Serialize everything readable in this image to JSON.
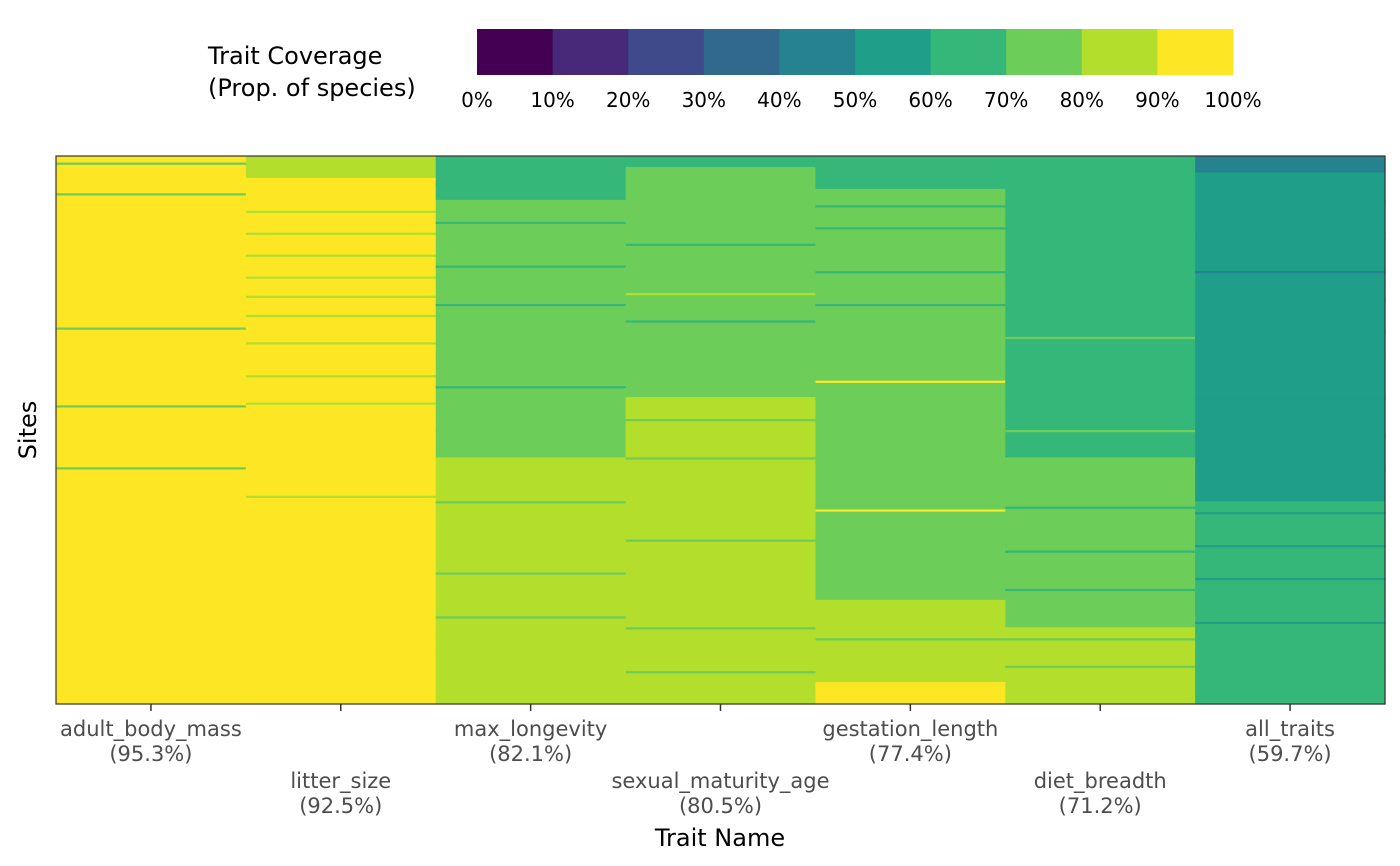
{
  "chart_data": {
    "type": "heatmap",
    "title": "",
    "xlabel": "Trait Name",
    "ylabel": "Sites",
    "legend": {
      "title_lines": [
        "Trait Coverage",
        "(Prop. of species)"
      ],
      "placement": "top",
      "tick_labels": [
        "0%",
        "10%",
        "20%",
        "30%",
        "40%",
        "50%",
        "60%",
        "70%",
        "80%",
        "90%",
        "100%"
      ],
      "bin_colors": [
        "#440154",
        "#482878",
        "#3E4A89",
        "#31688E",
        "#26828E",
        "#1F9E89",
        "#35B779",
        "#6DCD59",
        "#B4DE2C",
        "#FDE725"
      ]
    },
    "categories": [
      {
        "name": "adult_body_mass",
        "coverage_label": "(95.3%)",
        "coverage": 95.3
      },
      {
        "name": "litter_size",
        "coverage_label": "(92.5%)",
        "coverage": 92.5
      },
      {
        "name": "max_longevity",
        "coverage_label": "(82.1%)",
        "coverage": 82.1
      },
      {
        "name": "sexual_maturity_age",
        "coverage_label": "(80.5%)",
        "coverage": 80.5
      },
      {
        "name": "gestation_length",
        "coverage_label": "(77.4%)",
        "coverage": 77.4
      },
      {
        "name": "diet_breadth",
        "coverage_label": "(71.2%)",
        "coverage": 71.2
      },
      {
        "name": "all_traits",
        "coverage_label": "(59.7%)",
        "coverage": 59.7
      }
    ],
    "series": [
      {
        "bands": [
          [
            0,
            0.005,
            0.95
          ],
          [
            0.005,
            1,
            0.95
          ]
        ],
        "stripes": [
          [
            0.012,
            0.75
          ],
          [
            0.068,
            0.75
          ],
          [
            0.313,
            0.75
          ],
          [
            0.455,
            0.75
          ],
          [
            0.568,
            0.75
          ]
        ]
      },
      {
        "bands": [
          [
            0,
            0.01,
            0.85
          ],
          [
            0.01,
            0.04,
            0.85
          ],
          [
            0.04,
            0.35,
            0.92
          ],
          [
            0.35,
            1,
            0.95
          ]
        ],
        "stripes": [
          [
            0.1,
            0.85
          ],
          [
            0.14,
            0.85
          ],
          [
            0.18,
            0.85
          ],
          [
            0.22,
            0.85
          ],
          [
            0.255,
            0.85
          ],
          [
            0.29,
            0.85
          ],
          [
            0.34,
            0.85
          ],
          [
            0.4,
            0.85
          ],
          [
            0.45,
            0.85
          ],
          [
            0.62,
            0.85
          ]
        ]
      },
      {
        "bands": [
          [
            0,
            0.08,
            0.65
          ],
          [
            0.08,
            0.32,
            0.72
          ],
          [
            0.32,
            0.55,
            0.78
          ],
          [
            0.55,
            0.88,
            0.85
          ],
          [
            0.88,
            1,
            0.88
          ]
        ],
        "stripes": [
          [
            0.05,
            0.65
          ],
          [
            0.12,
            0.65
          ],
          [
            0.2,
            0.65
          ],
          [
            0.27,
            0.65
          ],
          [
            0.36,
            0.72
          ],
          [
            0.42,
            0.65
          ],
          [
            0.5,
            0.72
          ],
          [
            0.63,
            0.75
          ],
          [
            0.76,
            0.78
          ],
          [
            0.84,
            0.72
          ],
          [
            0.9,
            0.85
          ]
        ]
      },
      {
        "bands": [
          [
            0,
            0.02,
            0.65
          ],
          [
            0.02,
            0.04,
            0.72
          ],
          [
            0.04,
            0.22,
            0.75
          ],
          [
            0.22,
            0.44,
            0.72
          ],
          [
            0.44,
            0.62,
            0.82
          ],
          [
            0.62,
            0.98,
            0.85
          ],
          [
            0.98,
            1,
            0.88
          ]
        ],
        "stripes": [
          [
            0.16,
            0.65
          ],
          [
            0.25,
            0.85
          ],
          [
            0.3,
            0.65
          ],
          [
            0.39,
            0.72
          ],
          [
            0.48,
            0.75
          ],
          [
            0.55,
            0.72
          ],
          [
            0.7,
            0.72
          ],
          [
            0.86,
            0.72
          ],
          [
            0.94,
            0.75
          ]
        ]
      },
      {
        "bands": [
          [
            0,
            0.06,
            0.65
          ],
          [
            0.06,
            0.18,
            0.72
          ],
          [
            0.18,
            0.64,
            0.75
          ],
          [
            0.64,
            0.81,
            0.78
          ],
          [
            0.81,
            0.96,
            0.85
          ],
          [
            0.96,
            1,
            0.95
          ]
        ],
        "stripes": [
          [
            0.03,
            0.65
          ],
          [
            0.09,
            0.65
          ],
          [
            0.13,
            0.65
          ],
          [
            0.21,
            0.65
          ],
          [
            0.27,
            0.65
          ],
          [
            0.41,
            0.92
          ],
          [
            0.56,
            0.72
          ],
          [
            0.645,
            0.95
          ],
          [
            0.68,
            0.72
          ],
          [
            0.75,
            0.72
          ],
          [
            0.88,
            0.78
          ]
        ]
      },
      {
        "bands": [
          [
            0,
            0.04,
            0.62
          ],
          [
            0.04,
            0.25,
            0.68
          ],
          [
            0.25,
            0.55,
            0.62
          ],
          [
            0.55,
            0.86,
            0.72
          ],
          [
            0.86,
            1,
            0.8
          ]
        ],
        "stripes": [
          [
            0.08,
            0.62
          ],
          [
            0.12,
            0.62
          ],
          [
            0.18,
            0.62
          ],
          [
            0.23,
            0.62
          ],
          [
            0.33,
            0.72
          ],
          [
            0.38,
            0.62
          ],
          [
            0.45,
            0.62
          ],
          [
            0.5,
            0.72
          ],
          [
            0.64,
            0.6
          ],
          [
            0.72,
            0.66
          ],
          [
            0.79,
            0.62
          ],
          [
            0.88,
            0.72
          ],
          [
            0.93,
            0.72
          ]
        ]
      },
      {
        "bands": [
          [
            0,
            0.03,
            0.42
          ],
          [
            0.03,
            0.14,
            0.55
          ],
          [
            0.14,
            0.47,
            0.52
          ],
          [
            0.47,
            0.63,
            0.58
          ],
          [
            0.63,
            0.9,
            0.62
          ],
          [
            0.9,
            1,
            0.68
          ]
        ],
        "stripes": [
          [
            0.08,
            0.5
          ],
          [
            0.15,
            0.52
          ],
          [
            0.21,
            0.45
          ],
          [
            0.26,
            0.5
          ],
          [
            0.32,
            0.55
          ],
          [
            0.37,
            0.5
          ],
          [
            0.44,
            0.55
          ],
          [
            0.51,
            0.52
          ],
          [
            0.57,
            0.55
          ],
          [
            0.65,
            0.55
          ],
          [
            0.71,
            0.58
          ],
          [
            0.77,
            0.58
          ],
          [
            0.85,
            0.55
          ],
          [
            0.93,
            0.66
          ]
        ]
      }
    ],
    "ylim": [
      0,
      1
    ],
    "grid": false
  }
}
